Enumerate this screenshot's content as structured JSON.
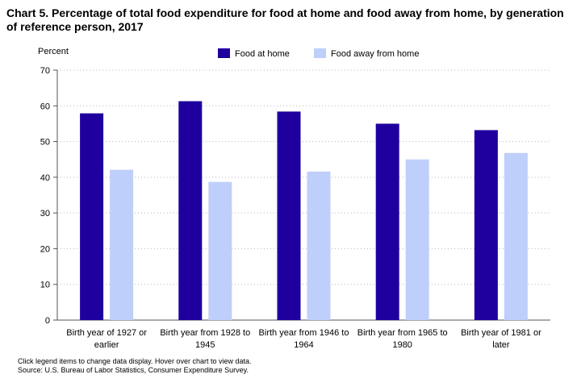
{
  "chart_data": {
    "type": "bar",
    "title": "Chart 5. Percentage of total food expenditure for food at home and food away from home, by generation of reference person, 2017",
    "ylabel": "Percent",
    "xlabel": "",
    "ylim": [
      0,
      70
    ],
    "yticks": [
      0,
      10,
      20,
      30,
      40,
      50,
      60,
      70
    ],
    "grid": true,
    "legend_position": "top",
    "categories": [
      [
        "Birth year of 1927 or",
        "earlier"
      ],
      [
        "Birth year from 1928 to",
        "1945"
      ],
      [
        "Birth year from 1946 to",
        "1964"
      ],
      [
        "Birth year from 1965 to",
        "1980"
      ],
      [
        "Birth year of 1981 or",
        "later"
      ]
    ],
    "series": [
      {
        "name": "Food at home",
        "color": "#1f009e",
        "values": [
          57.9,
          61.3,
          58.4,
          55.0,
          53.2
        ]
      },
      {
        "name": "Food away from home",
        "color": "#bfcffb",
        "values": [
          42.1,
          38.7,
          41.6,
          45.0,
          46.8
        ]
      }
    ]
  },
  "footnotes": {
    "line1": "Click legend items to change data display. Hover over chart to view data.",
    "line2": "Source: U.S. Bureau of Labor Statistics, Consumer Expenditure Survey."
  }
}
